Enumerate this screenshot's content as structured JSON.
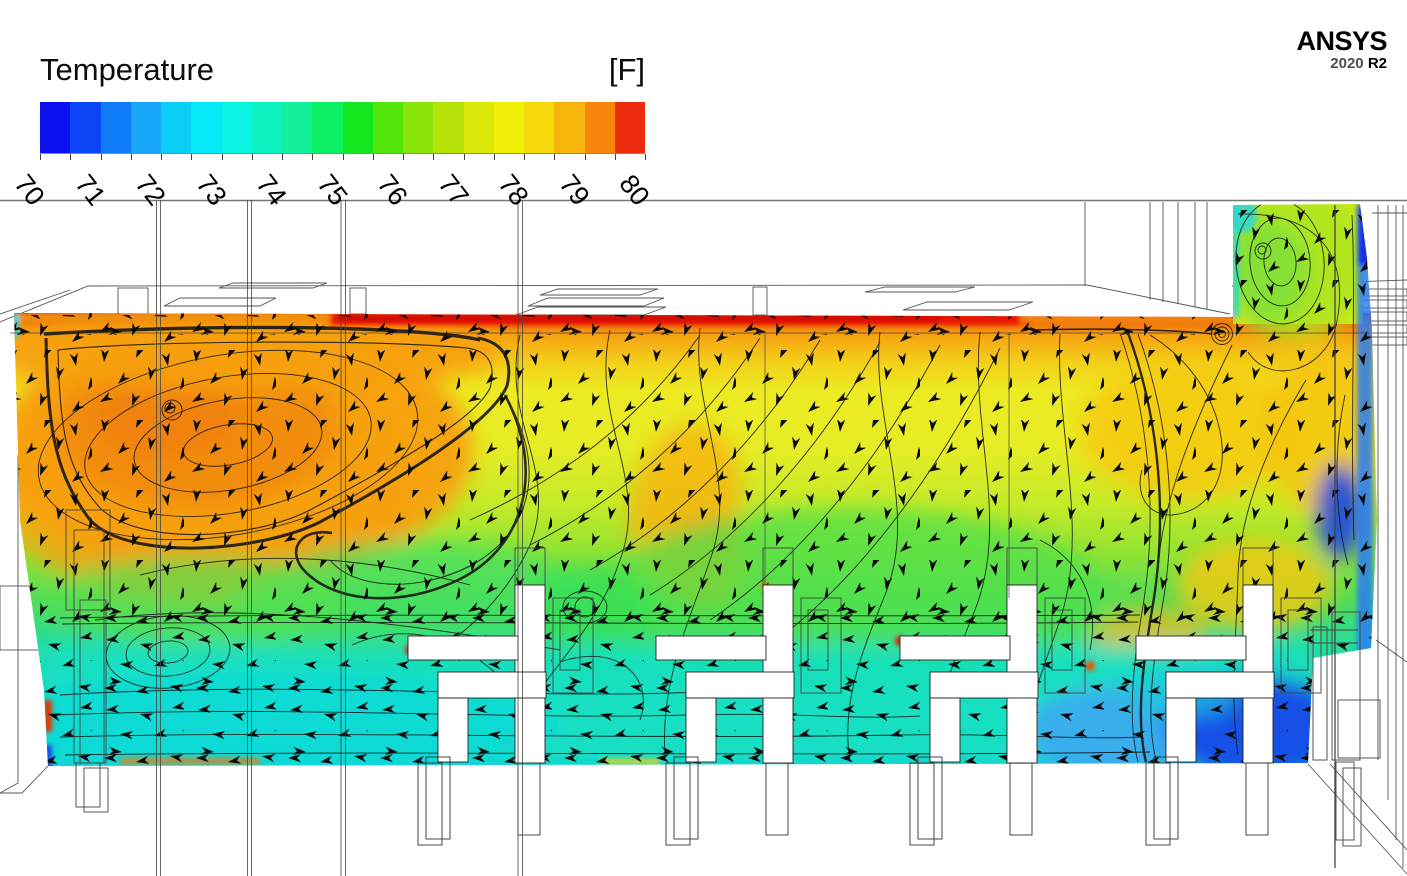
{
  "logo": {
    "brand": "ANSYS",
    "year": "2020",
    "release": "R2"
  },
  "legend": {
    "title": "Temperature",
    "unit": "[F]",
    "tick_labels": [
      "70",
      "71",
      "72",
      "73",
      "74",
      "75",
      "76",
      "77",
      "78",
      "79",
      "80"
    ],
    "colors": [
      "#0b10ee",
      "#0b45f5",
      "#0c7cf8",
      "#16a5f8",
      "#0ccff8",
      "#05e8f6",
      "#09f4e2",
      "#0ef2c2",
      "#12f09e",
      "#0def63",
      "#15e81d",
      "#52e60d",
      "#8ae309",
      "#b5e309",
      "#dbe609",
      "#f1ee07",
      "#f5d908",
      "#f7b40a",
      "#f8860d",
      "#ee2c0e"
    ]
  },
  "chart_data": {
    "type": "heatmap",
    "title": "Temperature",
    "unit": "F",
    "legend_position": "top-left",
    "colorbar": {
      "orientation": "horizontal",
      "min": 70,
      "max": 80,
      "ticks": [
        70,
        71,
        72,
        73,
        74,
        75,
        76,
        77,
        78,
        79,
        80
      ],
      "segment_count": 20,
      "segment_colors": [
        "#0b10ee",
        "#0b45f5",
        "#0c7cf8",
        "#16a5f8",
        "#0ccff8",
        "#05e8f6",
        "#09f4e2",
        "#0ef2c2",
        "#12f09e",
        "#0def63",
        "#15e81d",
        "#52e60d",
        "#8ae309",
        "#b5e309",
        "#dbe609",
        "#f1ee07",
        "#f5d908",
        "#f7b40a",
        "#f8860d",
        "#ee2c0e"
      ]
    },
    "description": "ANSYS CFD vertical-slice temperature contour through an office room with velocity vector glyphs and streamlines over wireframe room and workstation geometry",
    "features": [
      {
        "region": "ceiling jet along top of slice",
        "approx_temp_F": 80
      },
      {
        "region": "large recirculation vortex, upper left",
        "approx_temp_F": 78.5
      },
      {
        "region": "warm plume, mid room",
        "approx_temp_F": 78
      },
      {
        "region": "mid-room core",
        "approx_temp_F": 76.5
      },
      {
        "region": "lower occupied zone near desks",
        "approx_temp_F": 73.5
      },
      {
        "region": "cold supply region, lower right and right edge",
        "approx_temp_F": 70.5
      },
      {
        "region": "right column recirculation",
        "approx_temp_F": 75.5
      }
    ]
  }
}
